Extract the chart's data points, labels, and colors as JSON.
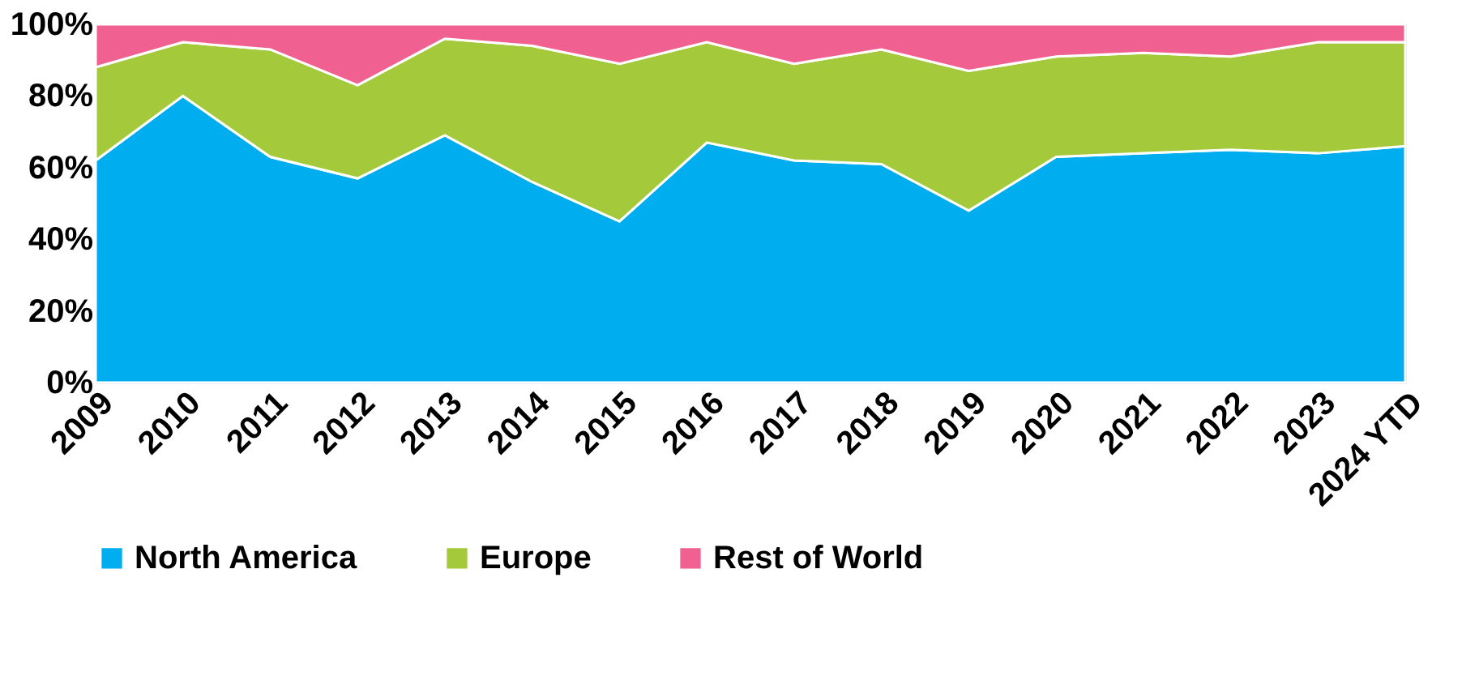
{
  "chart_data": {
    "type": "area",
    "stacked": true,
    "categories": [
      "2009",
      "2010",
      "2011",
      "2012",
      "2013",
      "2014",
      "2015",
      "2016",
      "2017",
      "2018",
      "2019",
      "2020",
      "2021",
      "2022",
      "2023",
      "2024 YTD"
    ],
    "series": [
      {
        "name": "North America",
        "color": "#00aeef",
        "values": [
          62,
          80,
          63,
          57,
          69,
          56,
          45,
          67,
          62,
          61,
          48,
          63,
          64,
          65,
          64,
          66
        ]
      },
      {
        "name": "Europe",
        "color": "#a4c93a",
        "values": [
          26,
          15,
          30,
          26,
          27,
          38,
          44,
          28,
          27,
          32,
          39,
          28,
          28,
          26,
          31,
          29
        ]
      },
      {
        "name": "Rest of World",
        "color": "#f06090",
        "values": [
          12,
          5,
          7,
          17,
          4,
          6,
          11,
          5,
          11,
          7,
          13,
          9,
          8,
          9,
          5,
          5
        ]
      }
    ],
    "ylim": [
      0,
      100
    ],
    "yticks": [
      {
        "value": 0,
        "label": "0%"
      },
      {
        "value": 20,
        "label": "20%"
      },
      {
        "value": 40,
        "label": "40%"
      },
      {
        "value": 60,
        "label": "60%"
      },
      {
        "value": 80,
        "label": "80%"
      },
      {
        "value": 100,
        "label": "100%"
      }
    ],
    "legend": "bottom"
  }
}
